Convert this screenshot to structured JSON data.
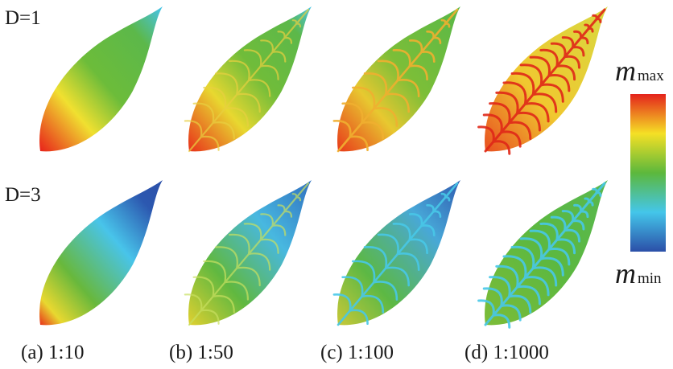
{
  "rows": [
    {
      "label": "D=1"
    },
    {
      "label": "D=3"
    }
  ],
  "columns": [
    {
      "label": "(a) 1:10"
    },
    {
      "label": "(b) 1:50"
    },
    {
      "label": "(c) 1:100"
    },
    {
      "label": "(d) 1:1000"
    }
  ],
  "colorbar": {
    "max": {
      "symbol": "m",
      "sub": "max"
    },
    "min": {
      "symbol": "m",
      "sub": "min"
    }
  }
}
